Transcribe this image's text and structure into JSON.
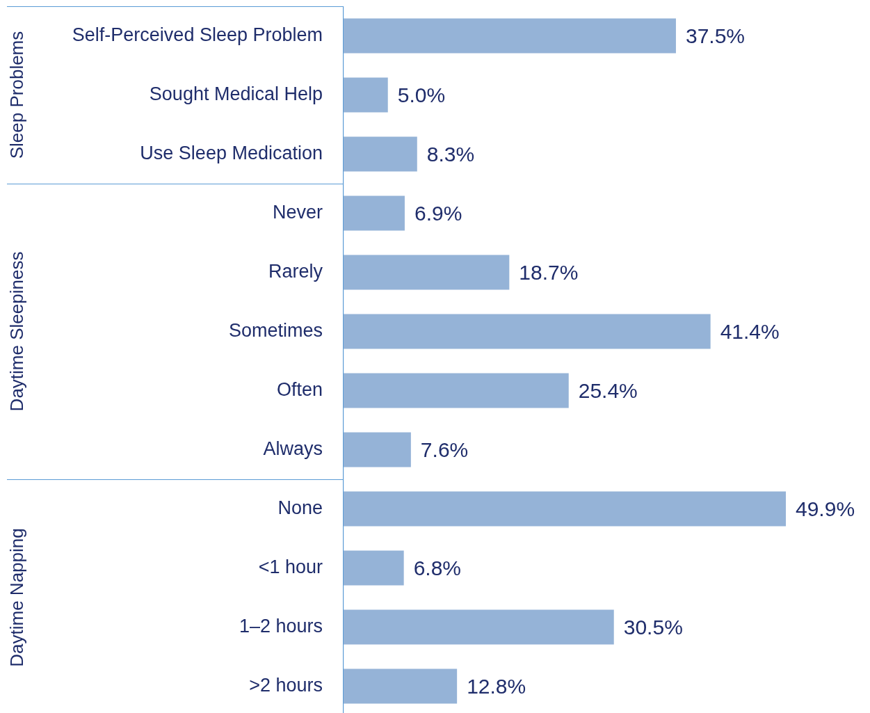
{
  "chart_data": [
    {
      "type": "bar",
      "orientation": "horizontal",
      "ylabel": "Sleep Problems",
      "categories": [
        "Self-Perceived Sleep Problem",
        "Sought Medical Help",
        "Use Sleep Medication"
      ],
      "values": [
        37.5,
        5.0,
        8.3
      ],
      "value_labels": [
        "37.5%",
        "5.0%",
        "8.3%"
      ],
      "color": "#95b3d7",
      "grid": false,
      "legend": false
    },
    {
      "type": "bar",
      "orientation": "horizontal",
      "ylabel": "Daytime Sleepiness",
      "categories": [
        "Never",
        "Rarely",
        "Sometimes",
        "Often",
        "Always"
      ],
      "values": [
        6.9,
        18.7,
        41.4,
        25.4,
        7.6
      ],
      "value_labels": [
        "6.9%",
        "18.7%",
        "41.4%",
        "25.4%",
        "7.6%"
      ],
      "color": "#95b3d7",
      "grid": false,
      "legend": false
    },
    {
      "type": "bar",
      "orientation": "horizontal",
      "ylabel": "Daytime Napping",
      "categories": [
        "None",
        "<1 hour",
        "1–2 hours",
        ">2 hours"
      ],
      "values": [
        49.9,
        6.8,
        30.5,
        12.8
      ],
      "value_labels": [
        "49.9%",
        "6.8%",
        "30.5%",
        "12.8%"
      ],
      "color": "#95b3d7",
      "grid": false,
      "legend": false
    }
  ]
}
